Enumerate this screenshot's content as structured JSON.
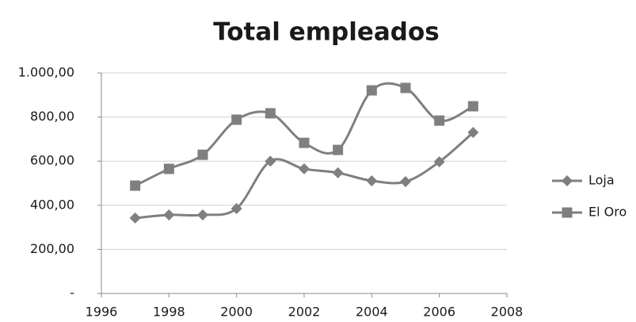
{
  "chart_data": {
    "type": "line",
    "title": "Total empleados",
    "x": [
      1997,
      1998,
      1999,
      2000,
      2001,
      2002,
      2003,
      2004,
      2005,
      2006,
      2007
    ],
    "series": [
      {
        "name": "Loja",
        "color": "#7f7f7f",
        "marker": "diamond",
        "values": [
          342,
          356,
          356,
          385,
          600,
          565,
          547,
          511,
          507,
          597,
          730
        ]
      },
      {
        "name": "El Oro",
        "color": "#7f7f7f",
        "marker": "square",
        "values": [
          489,
          565,
          629,
          788,
          817,
          683,
          651,
          921,
          932,
          784,
          849
        ]
      }
    ],
    "xlim": [
      1996,
      2008
    ],
    "xticks": [
      1996,
      1998,
      2000,
      2002,
      2004,
      2006,
      2008
    ],
    "ylim": [
      0,
      1000
    ],
    "yticks": [
      {
        "value": 0,
        "label": "-"
      },
      {
        "value": 200,
        "label": "200,00"
      },
      {
        "value": 400,
        "label": "400,00"
      },
      {
        "value": 600,
        "label": "600,00"
      },
      {
        "value": 800,
        "label": "800,00"
      },
      {
        "value": 1000,
        "label": "1.000,00"
      }
    ],
    "grid": true,
    "smooth": true,
    "legend": "right"
  }
}
